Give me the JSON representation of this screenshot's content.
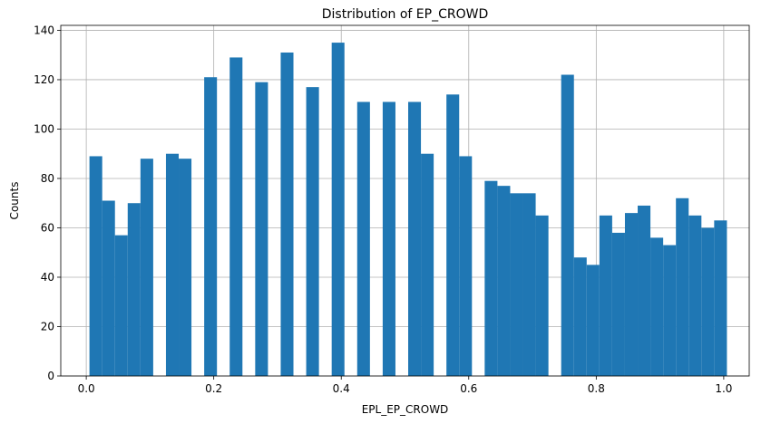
{
  "chart_data": {
    "type": "bar",
    "title": "Distribution of EP_CROWD",
    "xlabel": "EPL_EP_CROWD",
    "ylabel": "Counts",
    "xlim": [
      -0.04,
      1.04
    ],
    "ylim": [
      0,
      142
    ],
    "grid": true,
    "bar_color": "#1f77b4",
    "xticks": [
      "0.0",
      "0.2",
      "0.4",
      "0.6",
      "0.8",
      "1.0"
    ],
    "yticks": [
      "0",
      "20",
      "40",
      "60",
      "80",
      "100",
      "120",
      "140"
    ],
    "bin_width": 0.02,
    "bins_left": [
      0.005,
      0.025,
      0.045,
      0.065,
      0.085,
      0.105,
      0.125,
      0.145,
      0.165,
      0.185,
      0.205,
      0.225,
      0.245,
      0.265,
      0.285,
      0.305,
      0.325,
      0.345,
      0.365,
      0.385,
      0.405,
      0.425,
      0.445,
      0.465,
      0.485,
      0.505,
      0.525,
      0.545,
      0.565,
      0.585,
      0.605,
      0.625,
      0.645,
      0.665,
      0.685,
      0.705,
      0.725,
      0.745,
      0.765,
      0.785,
      0.805,
      0.825,
      0.845,
      0.865,
      0.885,
      0.905,
      0.925,
      0.945,
      0.965,
      0.985
    ],
    "values": [
      89,
      71,
      57,
      70,
      88,
      0,
      90,
      88,
      0,
      121,
      0,
      129,
      0,
      119,
      0,
      131,
      0,
      117,
      0,
      135,
      0,
      111,
      0,
      111,
      0,
      111,
      90,
      0,
      114,
      89,
      0,
      79,
      77,
      74,
      74,
      65,
      0,
      122,
      48,
      45,
      65,
      58,
      66,
      69,
      56,
      53,
      72,
      65,
      60,
      63
    ]
  }
}
